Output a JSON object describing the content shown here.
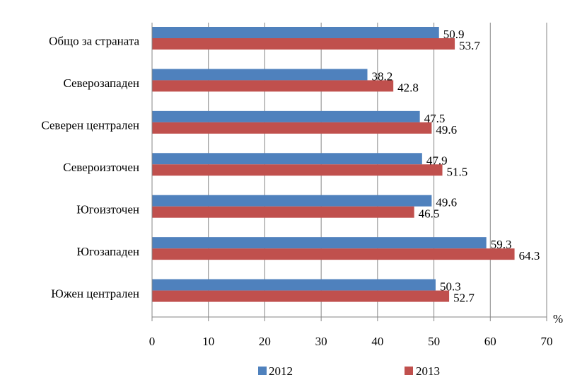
{
  "chart_data": {
    "type": "bar",
    "orientation": "horizontal",
    "categories": [
      "Общо за страната",
      "Северозападен",
      "Северен централен",
      "Североизточен",
      "Югоизточен",
      "Югозападен",
      "Южен централен"
    ],
    "series": [
      {
        "name": "2012",
        "color": "#4f81bd",
        "values": [
          50.9,
          38.2,
          47.5,
          47.9,
          49.6,
          59.3,
          50.3
        ],
        "labels": [
          "50.9",
          "38.2",
          "47.5",
          "47.9",
          "49.6",
          "59.3",
          "50.3"
        ]
      },
      {
        "name": "2013",
        "color": "#c0504d",
        "values": [
          53.7,
          42.8,
          49.6,
          51.5,
          46.5,
          64.3,
          52.7
        ],
        "labels": [
          "53.7",
          "42.8",
          "49.6",
          "51.5",
          "46.5",
          "64.3",
          "52.7"
        ]
      }
    ],
    "xlim": [
      0,
      70
    ],
    "xticks": [
      "0",
      "10",
      "20",
      "30",
      "40",
      "50",
      "60",
      "70"
    ],
    "unit": "%",
    "grid": "vertical",
    "legend_position": "bottom"
  }
}
